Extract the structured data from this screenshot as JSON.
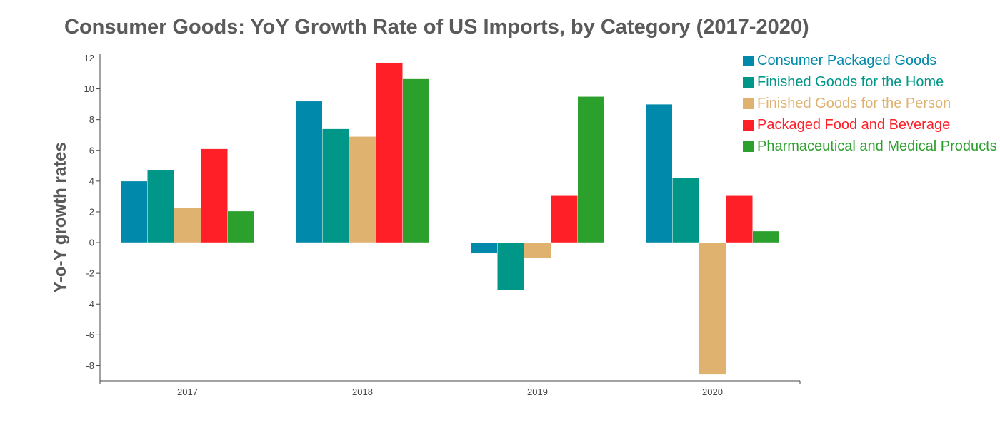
{
  "chart_data": {
    "type": "bar",
    "title": "Consumer Goods: YoY Growth Rate of US Imports, by Category (2017-2020)",
    "xlabel": "",
    "ylabel": "Y-o-Y growth rates",
    "categories": [
      "2017",
      "2018",
      "2019",
      "2020"
    ],
    "ylim": [
      -9,
      12.3
    ],
    "yticks": [
      12,
      10,
      8,
      6,
      4,
      2,
      0,
      -2,
      -4,
      -6,
      -8
    ],
    "grid": false,
    "legend_position": "top-right",
    "series": [
      {
        "name": "Consumer Packaged Goods",
        "color": "#0089aa",
        "values": [
          4.0,
          9.2,
          -0.7,
          9.0
        ]
      },
      {
        "name": "Finished Goods for the Home",
        "color": "#009688",
        "values": [
          4.7,
          7.4,
          -3.1,
          4.2
        ]
      },
      {
        "name": "Finished Goods for the Person",
        "color": "#e0b270",
        "values": [
          2.25,
          6.9,
          -1.0,
          -8.6
        ]
      },
      {
        "name": "Packaged Food and Beverage",
        "color": "#ff1f26",
        "values": [
          6.1,
          11.7,
          3.05,
          3.05
        ]
      },
      {
        "name": "Pharmaceutical and Medical Products",
        "color": "#2ca02c",
        "values": [
          2.05,
          10.65,
          9.5,
          0.75
        ]
      }
    ]
  }
}
